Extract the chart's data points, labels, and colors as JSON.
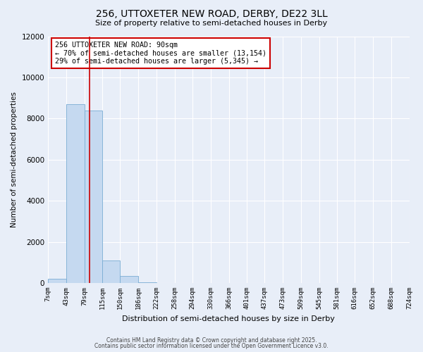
{
  "title": "256, UTTOXETER NEW ROAD, DERBY, DE22 3LL",
  "subtitle": "Size of property relative to semi-detached houses in Derby",
  "xlabel": "Distribution of semi-detached houses by size in Derby",
  "ylabel": "Number of semi-detached properties",
  "bar_color": "#c5d9f0",
  "bar_edge_color": "#7aadd4",
  "background_color": "#e8eef8",
  "grid_color": "#ffffff",
  "vline_x": 90,
  "vline_color": "#cc0000",
  "bin_edges": [
    7,
    43,
    79,
    115,
    150,
    186,
    222,
    258,
    294,
    330,
    366,
    401,
    437,
    473,
    509,
    545,
    581,
    616,
    652,
    688,
    724
  ],
  "bin_counts": [
    200,
    8700,
    8400,
    1100,
    350,
    50,
    5,
    0,
    0,
    0,
    0,
    0,
    0,
    0,
    0,
    0,
    0,
    0,
    0,
    0
  ],
  "annotation_line1": "256 UTTOXETER NEW ROAD: 90sqm",
  "annotation_line2": "← 70% of semi-detached houses are smaller (13,154)",
  "annotation_line3": "29% of semi-detached houses are larger (5,345) →",
  "annotation_box_color": "#cc0000",
  "ylim": [
    0,
    12000
  ],
  "yticks": [
    0,
    2000,
    4000,
    6000,
    8000,
    10000,
    12000
  ],
  "footnote1": "Contains HM Land Registry data © Crown copyright and database right 2025.",
  "footnote2": "Contains public sector information licensed under the Open Government Licence v3.0."
}
